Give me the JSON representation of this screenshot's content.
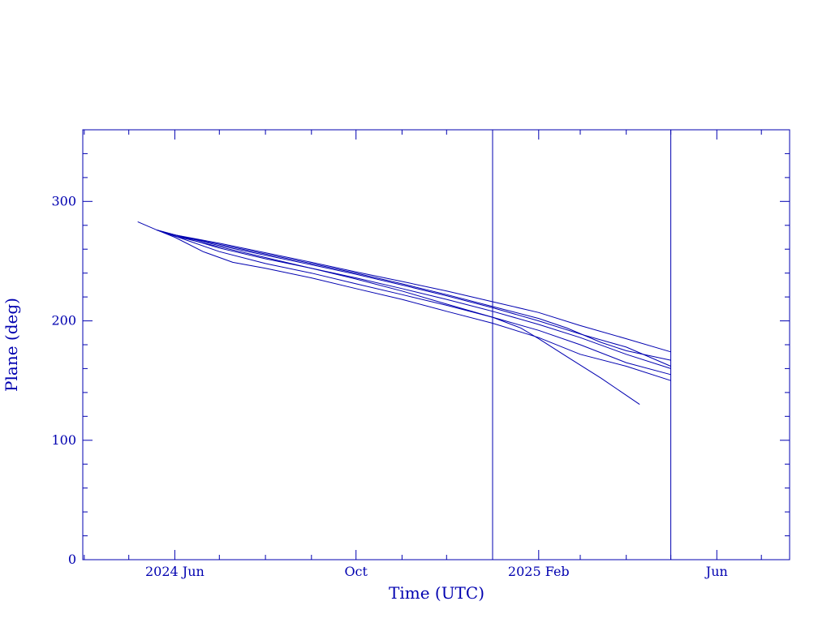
{
  "chart_data": {
    "type": "line",
    "title": "",
    "xlabel": "Time (UTC)",
    "ylabel": "Plane (deg)",
    "x_axis_kind": "time",
    "xlim": [
      "2024-03-31",
      "2025-07-20"
    ],
    "ylim": [
      0,
      360
    ],
    "x_tick_labels": [
      {
        "date": "2024-06-01",
        "label": "2024 Jun"
      },
      {
        "date": "2024-10-01",
        "label": "Oct"
      },
      {
        "date": "2025-02-01",
        "label": "2025 Feb"
      },
      {
        "date": "2025-06-01",
        "label": "Jun"
      }
    ],
    "y_ticks": [
      0,
      100,
      200,
      300
    ],
    "vertical_markers": [
      "2025-01-01",
      "2025-05-01"
    ],
    "color": "#0000b0",
    "grid": false,
    "legend": "none",
    "series": [
      {
        "x": [
          "2024-05-07",
          "2024-05-20",
          "2024-06-01",
          "2024-07-01",
          "2024-08-01",
          "2024-09-01",
          "2024-10-01",
          "2024-11-01",
          "2024-12-01",
          "2025-01-01",
          "2025-02-01",
          "2025-03-01",
          "2025-04-01",
          "2025-05-01"
        ],
        "y": [
          283,
          276,
          272,
          265,
          257,
          249,
          241,
          233,
          225,
          216,
          207,
          196,
          185,
          174
        ]
      },
      {
        "x": [
          "2024-05-20",
          "2024-06-01",
          "2024-07-01",
          "2024-08-01",
          "2024-09-01",
          "2024-10-01",
          "2024-11-01",
          "2024-12-01",
          "2025-01-01",
          "2025-02-01",
          "2025-02-20",
          "2025-03-15",
          "2025-04-01",
          "2025-05-01"
        ],
        "y": [
          276,
          272,
          264,
          256,
          248,
          240,
          231,
          222,
          212,
          202,
          194,
          182,
          175,
          167
        ]
      },
      {
        "x": [
          "2024-05-20",
          "2024-06-01",
          "2024-07-01",
          "2024-08-01",
          "2024-09-01",
          "2024-10-01",
          "2024-11-01",
          "2024-12-01",
          "2025-01-01",
          "2025-02-01",
          "2025-03-01",
          "2025-04-01",
          "2025-05-01"
        ],
        "y": [
          276,
          272,
          263,
          255,
          247,
          239,
          230,
          221,
          211,
          200,
          189,
          178,
          162
        ]
      },
      {
        "x": [
          "2024-05-20",
          "2024-06-01",
          "2024-07-01",
          "2024-08-01",
          "2024-09-01",
          "2024-10-01",
          "2024-11-01",
          "2024-12-01",
          "2025-01-01",
          "2025-02-01",
          "2025-03-01",
          "2025-04-01",
          "2025-05-01"
        ],
        "y": [
          276,
          272,
          261,
          252,
          244,
          236,
          227,
          218,
          208,
          197,
          186,
          172,
          160
        ]
      },
      {
        "x": [
          "2024-05-20",
          "2024-06-01",
          "2024-07-01",
          "2024-08-01",
          "2024-09-01",
          "2024-10-01",
          "2024-11-01",
          "2024-12-01",
          "2025-01-01",
          "2025-02-01",
          "2025-03-01",
          "2025-04-01",
          "2025-05-01"
        ],
        "y": [
          276,
          271,
          258,
          248,
          240,
          231,
          222,
          213,
          203,
          192,
          180,
          165,
          155
        ]
      },
      {
        "x": [
          "2024-05-20",
          "2024-06-01",
          "2024-06-20",
          "2024-07-10",
          "2024-08-01",
          "2024-09-01",
          "2024-10-01",
          "2024-11-01",
          "2024-12-01",
          "2025-01-01",
          "2025-02-01",
          "2025-03-01",
          "2025-04-01",
          "2025-05-01"
        ],
        "y": [
          276,
          270,
          258,
          249,
          244,
          236,
          227,
          218,
          208,
          198,
          186,
          172,
          162,
          150
        ]
      },
      {
        "x": [
          "2024-05-20",
          "2024-06-01",
          "2024-07-01",
          "2024-08-01",
          "2024-09-01",
          "2024-10-01",
          "2024-11-01",
          "2024-12-01",
          "2025-01-01",
          "2025-01-20",
          "2025-02-01",
          "2025-02-20",
          "2025-03-15",
          "2025-04-10"
        ],
        "y": [
          276,
          271,
          262,
          253,
          244,
          235,
          225,
          214,
          203,
          194,
          185,
          170,
          152,
          130
        ]
      }
    ]
  }
}
